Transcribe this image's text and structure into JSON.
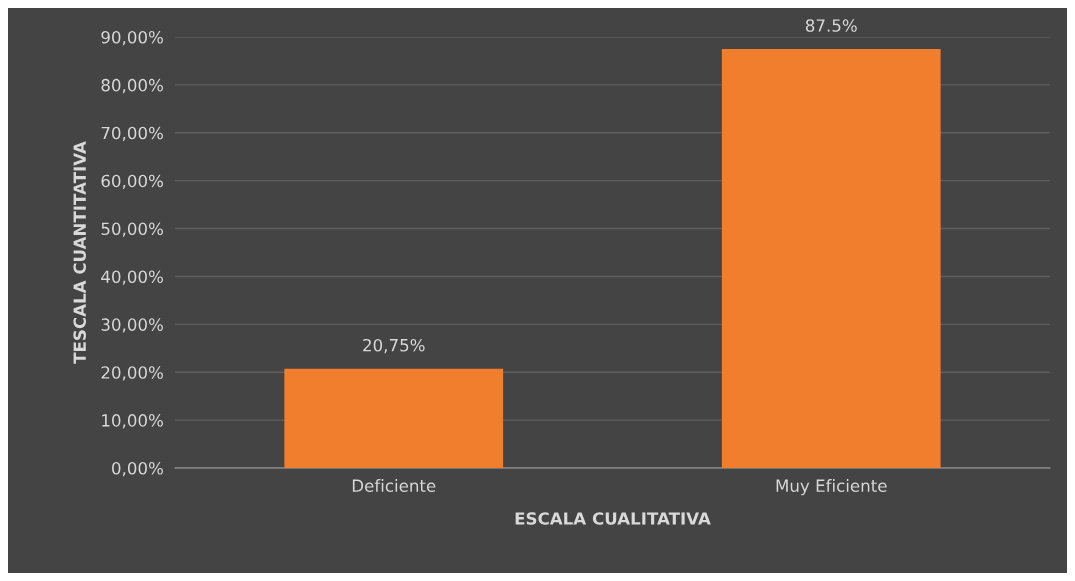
{
  "chart_data": {
    "type": "bar",
    "xlabel": "ESCALA CUALITATIVA",
    "ylabel": "TESCALA CUANTITATIVA",
    "categories": [
      "Deficiente",
      "Muy Eficiente"
    ],
    "values": [
      20.75,
      87.5
    ],
    "value_labels": [
      "20,75%",
      "87.5%"
    ],
    "color": "#f07e2c",
    "ylim": [
      0,
      90
    ],
    "yticks": [
      {
        "value": 0,
        "label": "0,00%"
      },
      {
        "value": 10,
        "label": "10,00%"
      },
      {
        "value": 20,
        "label": "20,00%"
      },
      {
        "value": 30,
        "label": "30,00%"
      },
      {
        "value": 40,
        "label": "40,00%"
      },
      {
        "value": 50,
        "label": "50,00%"
      },
      {
        "value": 60,
        "label": "60,00%"
      },
      {
        "value": 70,
        "label": "70,00%"
      },
      {
        "value": 80,
        "label": "80,00%"
      },
      {
        "value": 90,
        "label": "90,00%"
      }
    ],
    "grid": "y"
  }
}
